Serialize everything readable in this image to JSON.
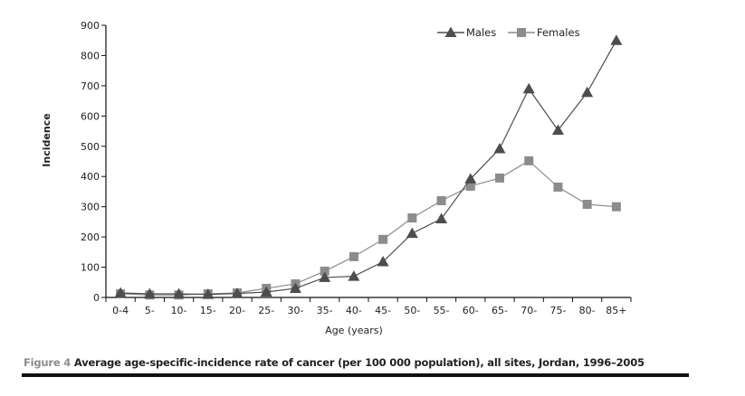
{
  "chart_data": {
    "type": "line",
    "title": "",
    "xlabel": "Age (years)",
    "ylabel": "Incidence",
    "ylim": [
      0,
      900
    ],
    "yticks": [
      0,
      100,
      200,
      300,
      400,
      500,
      600,
      700,
      800,
      900
    ],
    "categories": [
      "0-4",
      "5-",
      "10-",
      "15-",
      "20-",
      "25-",
      "30-",
      "35-",
      "40-",
      "45-",
      "50-",
      "55-",
      "60-",
      "65-",
      "70-",
      "75-",
      "80-",
      "85+"
    ],
    "legend_position": "top-right",
    "grid": false,
    "series": [
      {
        "name": "Males",
        "marker": "triangle",
        "color": "#4d4d4f",
        "values": [
          15,
          12,
          12,
          10,
          13,
          18,
          30,
          66,
          70,
          118,
          212,
          260,
          392,
          492,
          690,
          553,
          678,
          850
        ]
      },
      {
        "name": "Females",
        "marker": "square",
        "color": "#8c8c8c",
        "values": [
          12,
          8,
          8,
          12,
          15,
          30,
          45,
          87,
          135,
          192,
          263,
          320,
          368,
          395,
          452,
          365,
          308,
          300
        ]
      }
    ]
  },
  "caption": {
    "figure_label": "Figure 4",
    "text": "Average age-specific-incidence rate of cancer (per 100 000 population), all sites, Jordan, 1996–2005"
  }
}
